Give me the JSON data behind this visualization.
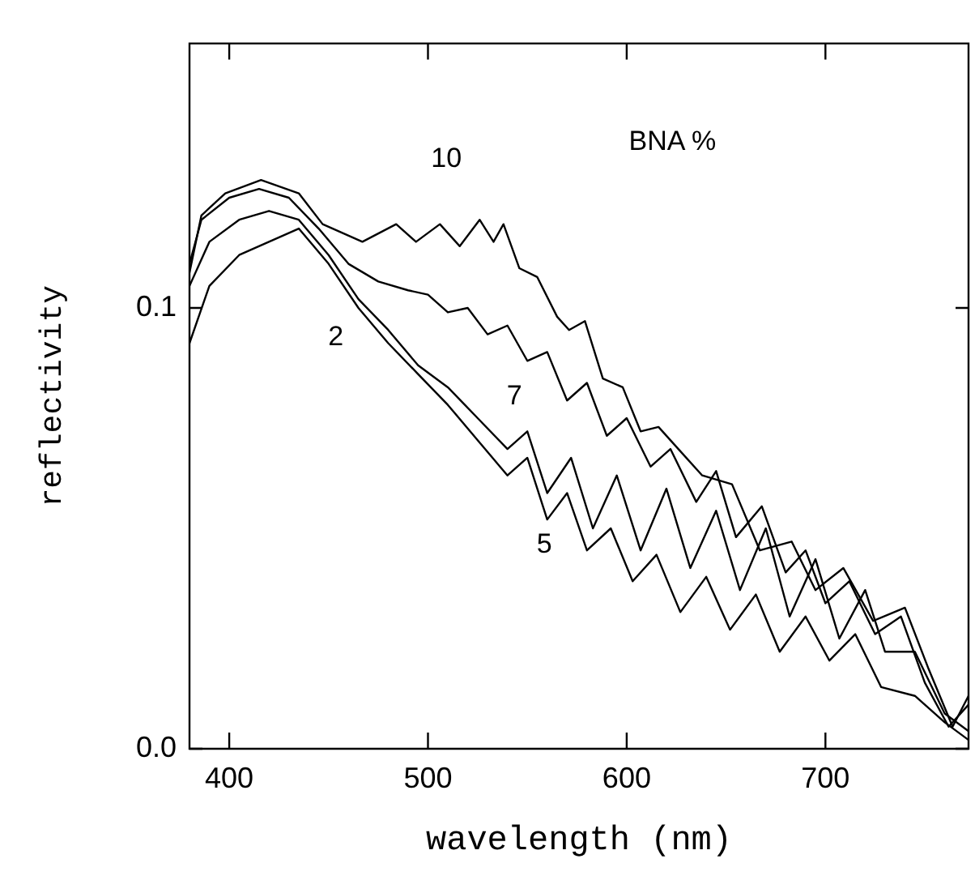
{
  "chart_data": {
    "type": "line",
    "xlabel": "wavelength (nm)",
    "ylabel": "reflectivity",
    "xlim": [
      380,
      772
    ],
    "ylim": [
      0,
      0.16
    ],
    "xticks": [
      400,
      500,
      600,
      700
    ],
    "yticks": [
      {
        "value": 0,
        "label": "0.0"
      },
      {
        "value": 0.1,
        "label": "0.1"
      }
    ],
    "marker": "none",
    "line_style": "solid",
    "annotations": [
      "BNA %"
    ],
    "series": [
      {
        "name": "10",
        "color": "#000000",
        "x": [
          380,
          386,
          398,
          416,
          435,
          447,
          467,
          484,
          494,
          506,
          516,
          526,
          533,
          538,
          546,
          555,
          565,
          571,
          579,
          588,
          598,
          607,
          616,
          626,
          638,
          653,
          667,
          683,
          695,
          709,
          724,
          740,
          752,
          764,
          772
        ],
        "values": [
          0.108,
          0.121,
          0.126,
          0.129,
          0.126,
          0.119,
          0.115,
          0.119,
          0.115,
          0.119,
          0.114,
          0.12,
          0.115,
          0.119,
          0.109,
          0.107,
          0.098,
          0.095,
          0.097,
          0.084,
          0.082,
          0.072,
          0.073,
          0.068,
          0.062,
          0.06,
          0.045,
          0.047,
          0.036,
          0.041,
          0.029,
          0.032,
          0.018,
          0.005,
          0.012
        ]
      },
      {
        "name": "7",
        "color": "#000000",
        "x": [
          380,
          386,
          400,
          415,
          430,
          445,
          460,
          475,
          490,
          500,
          510,
          520,
          530,
          540,
          550,
          560,
          570,
          580,
          590,
          600,
          612,
          622,
          635,
          645,
          655,
          668,
          680,
          690,
          700,
          712,
          725,
          738,
          750,
          762,
          772
        ],
        "values": [
          0.11,
          0.12,
          0.125,
          0.127,
          0.125,
          0.118,
          0.11,
          0.106,
          0.104,
          0.103,
          0.099,
          0.1,
          0.094,
          0.096,
          0.088,
          0.09,
          0.079,
          0.083,
          0.071,
          0.075,
          0.064,
          0.068,
          0.056,
          0.063,
          0.048,
          0.055,
          0.04,
          0.045,
          0.033,
          0.038,
          0.026,
          0.03,
          0.015,
          0.005,
          0.01
        ]
      },
      {
        "name": "2",
        "color": "#000000",
        "x": [
          380,
          390,
          405,
          420,
          435,
          450,
          465,
          480,
          495,
          510,
          525,
          540,
          550,
          560,
          572,
          583,
          595,
          607,
          620,
          632,
          645,
          657,
          670,
          682,
          695,
          707,
          720,
          730,
          745,
          760,
          772
        ],
        "values": [
          0.105,
          0.115,
          0.12,
          0.122,
          0.12,
          0.112,
          0.102,
          0.095,
          0.087,
          0.082,
          0.075,
          0.068,
          0.072,
          0.058,
          0.066,
          0.05,
          0.062,
          0.045,
          0.059,
          0.041,
          0.054,
          0.036,
          0.05,
          0.03,
          0.043,
          0.025,
          0.036,
          0.022,
          0.022,
          0.008,
          0.004
        ]
      },
      {
        "name": "5",
        "color": "#000000",
        "x": [
          380,
          390,
          405,
          420,
          435,
          450,
          465,
          480,
          495,
          510,
          525,
          540,
          550,
          560,
          570,
          580,
          592,
          603,
          615,
          627,
          640,
          652,
          665,
          677,
          690,
          702,
          715,
          728,
          745,
          760,
          772
        ],
        "values": [
          0.092,
          0.105,
          0.112,
          0.115,
          0.118,
          0.11,
          0.1,
          0.092,
          0.085,
          0.078,
          0.07,
          0.062,
          0.066,
          0.052,
          0.058,
          0.045,
          0.05,
          0.038,
          0.044,
          0.031,
          0.039,
          0.027,
          0.035,
          0.022,
          0.03,
          0.02,
          0.026,
          0.014,
          0.012,
          0.006,
          0.002
        ]
      }
    ]
  }
}
